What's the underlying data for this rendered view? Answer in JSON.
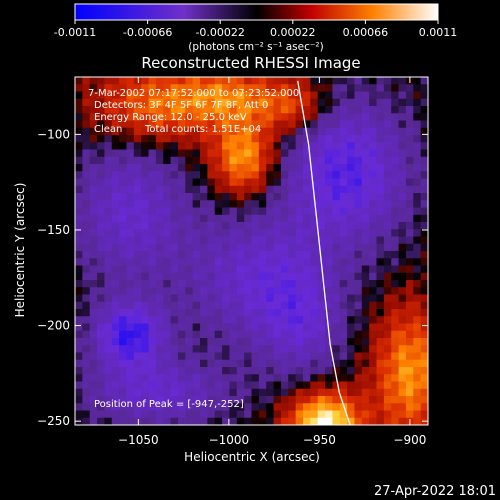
{
  "colorbar": {
    "ticks": [
      "-0.0011",
      "-0.00066",
      "-0.00022",
      "0.00022",
      "0.00066",
      "0.0011"
    ],
    "unit_label": "(photons cm⁻² s⁻¹ asec⁻²)"
  },
  "chart_data": {
    "type": "heatmap",
    "title": "Reconstructed RHESSI Image",
    "xlabel": "Heliocentric X (arcsec)",
    "ylabel": "Heliocentric Y (arcsec)",
    "xlim": [
      -1085,
      -890
    ],
    "ylim": [
      -252,
      -70
    ],
    "x_ticks": [
      -1050,
      -1000,
      -950,
      -900
    ],
    "y_ticks": [
      -100,
      -150,
      -200,
      -250
    ],
    "color_range": [
      -0.0011,
      0.0011
    ],
    "colormap": [
      "#0000ff",
      "#6a2ad8",
      "#000000",
      "#cc1a00",
      "#ff8000",
      "#ffffff"
    ],
    "sources": [
      {
        "x": -947,
        "y": -252,
        "value": 0.0011,
        "sx": 14,
        "sy": 12
      },
      {
        "x": -992,
        "y": -112,
        "value": 0.00075,
        "sx": 12,
        "sy": 14
      },
      {
        "x": -1040,
        "y": -85,
        "value": 0.0006,
        "sx": 24,
        "sy": 14
      },
      {
        "x": -1000,
        "y": -80,
        "value": 0.0005,
        "sx": 18,
        "sy": 10
      },
      {
        "x": -965,
        "y": -85,
        "value": 0.0005,
        "sx": 14,
        "sy": 10
      },
      {
        "x": -900,
        "y": -225,
        "value": 0.0007,
        "sx": 14,
        "sy": 24
      },
      {
        "x": -935,
        "y": -120,
        "value": -0.0007,
        "sx": 24,
        "sy": 26
      },
      {
        "x": -1055,
        "y": -205,
        "value": -0.0008,
        "sx": 14,
        "sy": 12
      },
      {
        "x": -1055,
        "y": -140,
        "value": -0.0005,
        "sx": 22,
        "sy": 26
      },
      {
        "x": -985,
        "y": -175,
        "value": -0.0005,
        "sx": 28,
        "sy": 24
      },
      {
        "x": -1040,
        "y": -235,
        "value": -0.0005,
        "sx": 28,
        "sy": 12
      },
      {
        "x": -960,
        "y": -200,
        "value": -0.0004,
        "sx": 16,
        "sy": 20
      }
    ],
    "limb_curve": [
      {
        "x": -962,
        "y": -72
      },
      {
        "x": -956,
        "y": -105
      },
      {
        "x": -952,
        "y": -140
      },
      {
        "x": -948,
        "y": -175
      },
      {
        "x": -944,
        "y": -210
      },
      {
        "x": -939,
        "y": -235
      },
      {
        "x": -933,
        "y": -252
      }
    ],
    "annotations": [
      "7-Mar-2002 07:17:52.000 to 07:23:52.000",
      "Detectors: 3F 4F 5F 6F 7F 8F, Att 0",
      "Energy Range: 12.0 - 25.0 keV",
      "Clean",
      "Total counts: 1.51E+04"
    ],
    "peak_label": "Position of Peak = [-947,-252]"
  },
  "footer": {
    "timestamp": "27-Apr-2022 18:01"
  }
}
